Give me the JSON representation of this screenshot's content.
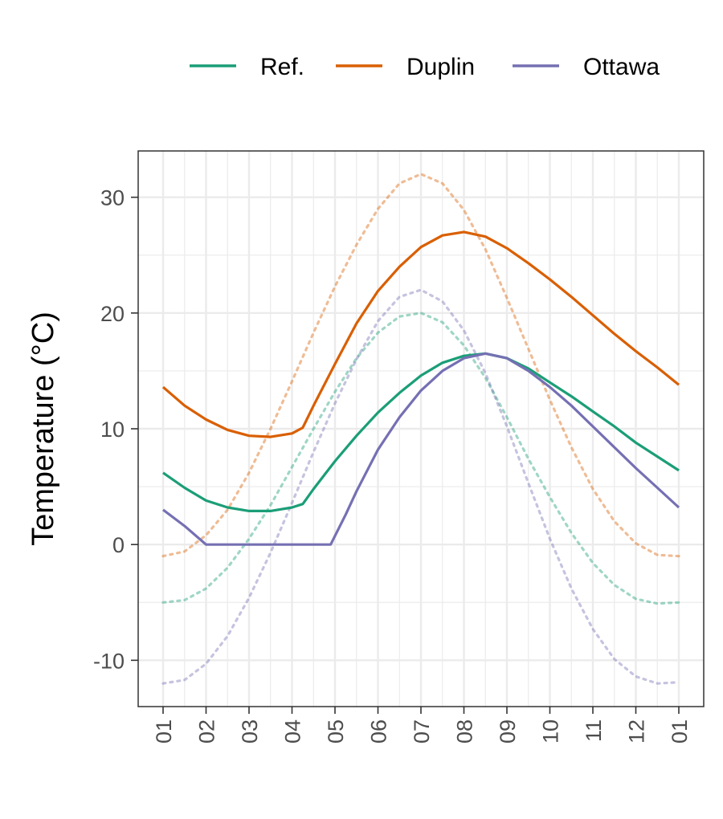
{
  "chart_data": {
    "type": "line",
    "title": "",
    "xlabel": "",
    "ylabel": "Temperature (°C)",
    "x_tick_labels": [
      "01",
      "02",
      "03",
      "04",
      "05",
      "06",
      "07",
      "08",
      "09",
      "10",
      "11",
      "12",
      "01"
    ],
    "x_range": [
      0,
      12
    ],
    "ylim": [
      -14,
      34
    ],
    "y_ticks": [
      -10,
      0,
      10,
      20,
      30
    ],
    "y_tick_labels": [
      "-10",
      "0",
      "10",
      "20",
      "30"
    ],
    "grid": true,
    "legend": {
      "placement": "top",
      "entries": [
        "Ref.",
        "Duplin",
        "Ottawa"
      ]
    },
    "series": [
      {
        "name": "Ref.",
        "style": "solid",
        "color": "#1b9e77",
        "x": [
          0,
          0.5,
          1,
          1.5,
          2,
          2.5,
          3,
          3.25,
          3.5,
          4,
          4.5,
          5,
          5.5,
          6,
          6.5,
          7,
          7.5,
          8,
          8.5,
          9,
          9.5,
          10,
          10.5,
          11,
          11.5,
          12
        ],
        "y": [
          6.2,
          4.9,
          3.8,
          3.2,
          2.9,
          2.9,
          3.2,
          3.5,
          4.8,
          7.2,
          9.4,
          11.4,
          13.1,
          14.6,
          15.7,
          16.3,
          16.5,
          16.1,
          15.2,
          14.0,
          12.8,
          11.5,
          10.2,
          8.8,
          7.6,
          6.4
        ]
      },
      {
        "name": "Duplin",
        "style": "solid",
        "color": "#d95f02",
        "x": [
          0,
          0.5,
          1,
          1.5,
          2,
          2.5,
          3,
          3.25,
          3.5,
          4,
          4.5,
          5,
          5.5,
          6,
          6.5,
          7,
          7.5,
          8,
          8.5,
          9,
          9.5,
          10,
          10.5,
          11,
          11.5,
          12
        ],
        "y": [
          13.6,
          12.0,
          10.8,
          9.9,
          9.4,
          9.3,
          9.6,
          10.1,
          12.0,
          15.6,
          19.1,
          21.9,
          24.0,
          25.7,
          26.7,
          27.0,
          26.6,
          25.6,
          24.3,
          22.9,
          21.4,
          19.8,
          18.2,
          16.7,
          15.3,
          13.8
        ]
      },
      {
        "name": "Ottawa",
        "style": "solid",
        "color": "#7570b3",
        "x": [
          0,
          0.5,
          1,
          1.5,
          2,
          2.5,
          3,
          3.5,
          3.9,
          4.25,
          4.5,
          5,
          5.5,
          6,
          6.5,
          7,
          7.5,
          8,
          8.5,
          9,
          9.5,
          10,
          10.5,
          11,
          11.5,
          12
        ],
        "y": [
          3.0,
          1.6,
          0.0,
          0.0,
          0.0,
          0.0,
          0.0,
          0.0,
          0.0,
          2.6,
          4.6,
          8.2,
          11.0,
          13.3,
          15.0,
          16.1,
          16.5,
          16.1,
          15.0,
          13.6,
          12.0,
          10.2,
          8.4,
          6.6,
          4.9,
          3.2
        ]
      },
      {
        "name": "",
        "style": "dotted",
        "color": "#1b9e77",
        "x": [
          0,
          0.5,
          1,
          1.5,
          2,
          2.5,
          3,
          3.5,
          4,
          4.5,
          5,
          5.5,
          6,
          6.5,
          7,
          7.5,
          8,
          8.5,
          9,
          9.5,
          10,
          10.5,
          11,
          11.5,
          12
        ],
        "y": [
          -5.0,
          -4.8,
          -3.8,
          -2.0,
          0.5,
          3.4,
          6.7,
          10.0,
          13.2,
          16.1,
          18.3,
          19.7,
          20.0,
          19.2,
          17.2,
          14.4,
          11.0,
          7.4,
          4.1,
          1.0,
          -1.6,
          -3.5,
          -4.7,
          -5.1,
          -5.0
        ]
      },
      {
        "name": "",
        "style": "dotted",
        "color": "#d95f02",
        "x": [
          0,
          0.5,
          1,
          1.5,
          2,
          2.5,
          3,
          3.5,
          4,
          4.5,
          5,
          5.5,
          6,
          6.5,
          7,
          7.5,
          8,
          8.5,
          9,
          9.5,
          10,
          10.5,
          11,
          11.5,
          12
        ],
        "y": [
          -1.0,
          -0.6,
          0.8,
          3.0,
          6.2,
          10.0,
          14.1,
          18.3,
          22.3,
          25.9,
          29.0,
          31.2,
          32.0,
          31.2,
          28.9,
          25.5,
          21.3,
          16.9,
          12.5,
          8.4,
          4.8,
          2.0,
          0.1,
          -0.9,
          -1.0
        ]
      },
      {
        "name": "",
        "style": "dotted",
        "color": "#7570b3",
        "x": [
          0,
          0.5,
          1,
          1.5,
          2,
          2.5,
          3,
          3.5,
          4,
          4.5,
          5,
          5.5,
          6,
          6.5,
          7,
          7.5,
          8,
          8.5,
          9,
          9.5,
          10,
          10.5,
          11,
          11.5,
          12
        ],
        "y": [
          -12.0,
          -11.7,
          -10.3,
          -7.9,
          -4.6,
          -0.7,
          3.6,
          8.0,
          12.2,
          16.0,
          19.3,
          21.4,
          22.0,
          21.0,
          18.5,
          14.8,
          10.2,
          5.3,
          0.5,
          -3.8,
          -7.3,
          -9.9,
          -11.4,
          -12.0,
          -11.9
        ]
      }
    ]
  }
}
